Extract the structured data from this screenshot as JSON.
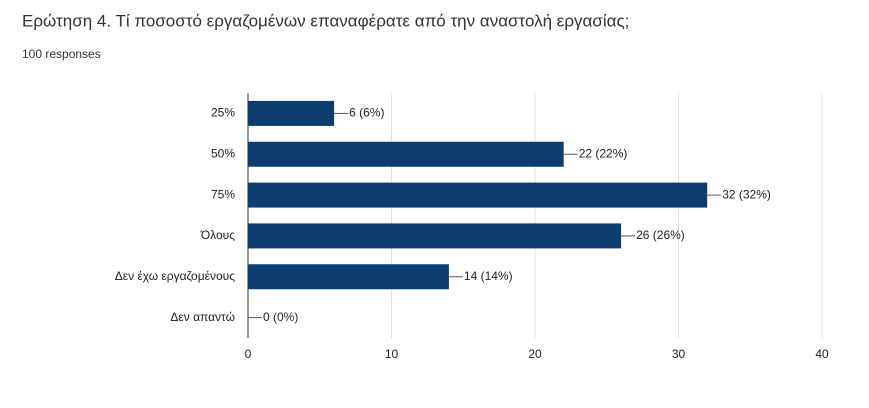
{
  "chart_data": {
    "type": "bar",
    "horizontal": true,
    "title": "Ερώτηση 4. Τί ποσοστό εργαζομένων επαναφέρατε από την αναστολή εργασίας;",
    "subtitle": "100 responses",
    "categories": [
      "25%",
      "50%",
      "75%",
      "Όλους",
      "Δεν έχω εργαζομένους",
      "Δεν απαντώ"
    ],
    "values": [
      6,
      22,
      32,
      26,
      14,
      0
    ],
    "value_labels": [
      "6 (6%)",
      "22 (22%)",
      "32 (32%)",
      "26 (26%)",
      "14 (14%)",
      "0 (0%)"
    ],
    "color": "#0b3d6f",
    "xlim": [
      0,
      40
    ],
    "xticks": [
      0,
      10,
      20,
      30,
      40
    ],
    "grid": true
  }
}
